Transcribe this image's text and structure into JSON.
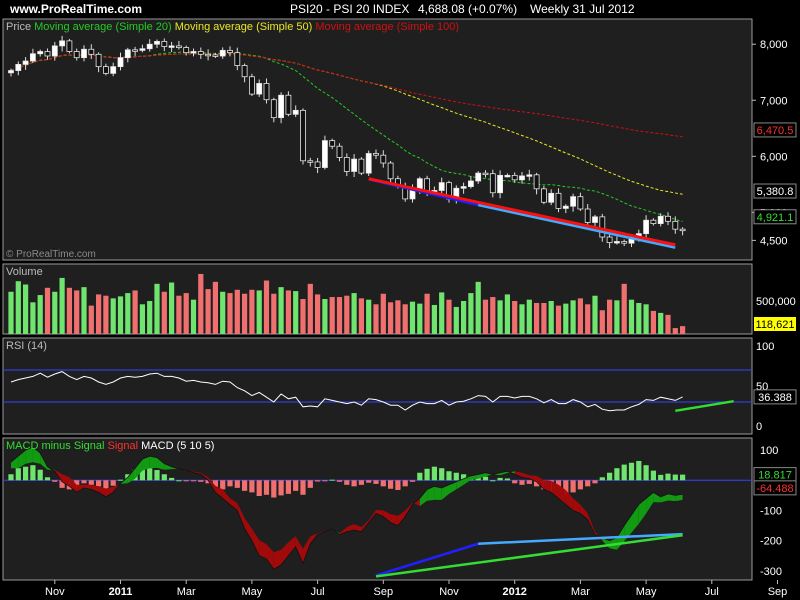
{
  "header": {
    "site": "www.ProRealTime.com",
    "title": "PSI20 - PSI 20 INDEX",
    "quote": "4,688.08 (+0.07%)",
    "period": "Weekly  31 Jul 2012"
  },
  "watermark": "© ProRealTime.com",
  "colors": {
    "background": "#000000",
    "panel": "#1f1f1f",
    "up": "#6fe46f",
    "down": "#f07070",
    "ma20": "#22cc22",
    "ma50": "#e8e820",
    "ma100": "#d01010",
    "rsi": "#ffffff",
    "rsi_bands": "#3344ff",
    "trend_red": "#ff1010",
    "trend_blue": "#2020ff",
    "trend_lightblue": "#44aaff",
    "trend_green": "#33dd33"
  },
  "chart_data": [
    {
      "type": "candlestick",
      "name": "price",
      "legend": [
        {
          "label": "Price",
          "color": "#bbbbbb"
        },
        {
          "label": "Moving average (Simple 20)",
          "color": "#22cc22"
        },
        {
          "label": "Moving average (Simple 50)",
          "color": "#e8e820"
        },
        {
          "label": "Moving average (Simple 100)",
          "color": "#d01010"
        }
      ],
      "ylim": [
        4150,
        8450
      ],
      "yticks": [
        4500,
        5000,
        6000,
        7000,
        8000
      ],
      "ytick_labels": [
        "4,500",
        "5,000",
        "6,000",
        "7,000",
        "8,000"
      ],
      "last_value_labels": [
        {
          "value": 6470.5,
          "text": "6,470.5",
          "color": "#ff3030"
        },
        {
          "value": 5380.8,
          "text": "5,380.8",
          "color": "#ffffff"
        },
        {
          "value": 4921.1,
          "text": "4,921.1",
          "color": "#33dd33"
        }
      ],
      "close": [
        7530,
        7640,
        7700,
        7830,
        7870,
        7790,
        7970,
        8060,
        7870,
        7760,
        7910,
        7820,
        7600,
        7480,
        7600,
        7760,
        7900,
        7890,
        7920,
        8000,
        8050,
        7960,
        7970,
        7940,
        7850,
        7870,
        7820,
        7810,
        7790,
        7890,
        7850,
        7620,
        7420,
        7110,
        7300,
        7010,
        6690,
        7090,
        6750,
        6820,
        5920,
        5900,
        5800,
        6280,
        6180,
        5980,
        5730,
        5950,
        5700,
        6050,
        6020,
        5880,
        5600,
        5460,
        5240,
        5410,
        5600,
        5390,
        5390,
        5530,
        5240,
        5430,
        5460,
        5560,
        5700,
        5690,
        5350,
        5660,
        5660,
        5580,
        5650,
        5670,
        5420,
        5180,
        5340,
        5070,
        5110,
        5280,
        5060,
        4820,
        4920,
        4560,
        4460,
        4480,
        4450,
        4560,
        4620,
        4860,
        4800,
        4930,
        4840,
        4700,
        4688
      ]
    },
    {
      "type": "bar",
      "name": "Volume",
      "legend": [
        {
          "label": "Volume",
          "color": "#bbbbbb"
        }
      ],
      "ytick_labels": [
        "500,000"
      ],
      "last_value_label": "118,621",
      "values": [
        640,
        800,
        750,
        480,
        590,
        700,
        640,
        850,
        700,
        660,
        710,
        430,
        600,
        580,
        540,
        570,
        620,
        660,
        450,
        500,
        760,
        640,
        780,
        580,
        620,
        520,
        910,
        680,
        790,
        640,
        620,
        670,
        610,
        670,
        660,
        810,
        610,
        710,
        660,
        650,
        530,
        760,
        600,
        530,
        560,
        560,
        580,
        620,
        540,
        520,
        450,
        610,
        480,
        510,
        450,
        490,
        460,
        610,
        440,
        630,
        520,
        410,
        500,
        620,
        790,
        520,
        560,
        510,
        600,
        500,
        450,
        520,
        470,
        470,
        500,
        430,
        460,
        510,
        540,
        450,
        580,
        360,
        520,
        510,
        760,
        520,
        470,
        450,
        350,
        320,
        290,
        90,
        119
      ]
    },
    {
      "type": "line",
      "name": "RSI (14)",
      "legend": [
        {
          "label": "RSI (14)",
          "color": "#bbbbbb"
        }
      ],
      "ylim": [
        -10,
        110
      ],
      "yticks": [
        0,
        50,
        100
      ],
      "bands": [
        70,
        30
      ],
      "last_value_label": "36.388",
      "values": [
        55,
        58,
        60,
        62,
        66,
        61,
        65,
        68,
        62,
        58,
        62,
        60,
        55,
        52,
        55,
        60,
        62,
        61,
        62,
        65,
        66,
        62,
        62,
        60,
        56,
        57,
        55,
        54,
        52,
        56,
        55,
        48,
        44,
        38,
        42,
        36,
        30,
        40,
        34,
        36,
        24,
        25,
        24,
        34,
        32,
        30,
        28,
        30,
        26,
        34,
        33,
        30,
        26,
        26,
        20,
        26,
        30,
        28,
        28,
        32,
        26,
        30,
        31,
        34,
        38,
        37,
        30,
        37,
        37,
        35,
        37,
        37,
        34,
        29,
        33,
        28,
        28,
        33,
        30,
        24,
        27,
        21,
        19,
        20,
        20,
        24,
        27,
        33,
        32,
        36,
        34,
        32,
        36.4
      ]
    },
    {
      "type": "bar+line",
      "name": "MACD",
      "legend": [
        {
          "label": "MACD minus Signal",
          "color": "#33dd33"
        },
        {
          "label": "Signal",
          "color": "#ff3030"
        },
        {
          "label": "MACD (5 10 5)",
          "color": "#ffffff"
        }
      ],
      "ylim": [
        -330,
        140
      ],
      "yticks": [
        -300,
        -200,
        -100,
        0,
        100
      ],
      "last_value_labels": [
        {
          "text": "18.817",
          "color": "#33dd33"
        },
        {
          "text": "-64.488",
          "color": "#ff3030"
        }
      ],
      "histogram": [
        20,
        40,
        45,
        50,
        35,
        10,
        -5,
        -25,
        -30,
        -25,
        -10,
        -15,
        -20,
        -28,
        -18,
        2,
        20,
        35,
        38,
        40,
        34,
        20,
        8,
        0,
        -2,
        -3,
        -5,
        -10,
        -22,
        -30,
        -20,
        -25,
        -35,
        -40,
        -52,
        -48,
        -57,
        -50,
        -45,
        -35,
        -48,
        -25,
        -4,
        -2,
        2,
        -5,
        -15,
        -20,
        -15,
        -8,
        -12,
        -20,
        -28,
        -32,
        -20,
        -5,
        25,
        38,
        45,
        40,
        30,
        25,
        20,
        14,
        15,
        12,
        0,
        8,
        6,
        -10,
        -15,
        -12,
        -20,
        -30,
        -38,
        -45,
        -48,
        -40,
        -30,
        -20,
        -10,
        10,
        25,
        40,
        52,
        58,
        64,
        50,
        32,
        18,
        22,
        19,
        18.8
      ],
      "macd": [
        60,
        80,
        100,
        110,
        90,
        45,
        30,
        -5,
        -20,
        -40,
        -25,
        -30,
        -40,
        -55,
        -40,
        -10,
        10,
        40,
        70,
        80,
        75,
        55,
        45,
        38,
        35,
        25,
        20,
        0,
        -40,
        -60,
        -80,
        -100,
        -160,
        -200,
        -250,
        -260,
        -295,
        -280,
        -250,
        -220,
        -275,
        -210,
        -180,
        -170,
        -160,
        -180,
        -170,
        -165,
        -170,
        -140,
        -110,
        -120,
        -140,
        -150,
        -120,
        -80,
        -60,
        -30,
        -20,
        -25,
        -15,
        -5,
        5,
        15,
        20,
        25,
        20,
        25,
        30,
        20,
        10,
        5,
        -5,
        -30,
        -40,
        -60,
        -80,
        -100,
        -110,
        -130,
        -180,
        -190,
        -200,
        -190,
        -150,
        -115,
        -80,
        -60,
        -40,
        -55,
        -45,
        -50,
        -46
      ]
    }
  ],
  "x_axis": {
    "labels": [
      "Nov",
      "2011",
      "Mar",
      "May",
      "Jul",
      "Sep",
      "Nov",
      "2012",
      "Mar",
      "May",
      "Jul",
      "Sep"
    ],
    "bold": [
      false,
      true,
      false,
      false,
      false,
      false,
      false,
      true,
      false,
      false,
      false,
      false
    ],
    "week_index": [
      6,
      15,
      24,
      33,
      42,
      51,
      60,
      69,
      78,
      87,
      96,
      105
    ]
  },
  "trendlines": [
    {
      "pane": 0,
      "color": "#2020ff",
      "points": [
        [
          49,
          5590
        ],
        [
          64,
          5130
        ]
      ]
    },
    {
      "pane": 0,
      "color": "#44aaff",
      "points": [
        [
          64,
          5130
        ],
        [
          91,
          4370
        ]
      ]
    },
    {
      "pane": 0,
      "color": "#ff1010",
      "points": [
        [
          49,
          5600
        ],
        [
          91,
          4420
        ]
      ]
    },
    {
      "pane": 2,
      "color": "#33dd33",
      "points": [
        [
          91,
          19
        ],
        [
          99,
          31
        ]
      ]
    },
    {
      "pane": 3,
      "color": "#2020ff",
      "points": [
        [
          50,
          -315
        ],
        [
          64,
          -210
        ]
      ]
    },
    {
      "pane": 3,
      "color": "#44aaff",
      "points": [
        [
          64,
          -210
        ],
        [
          92,
          -178
        ]
      ]
    },
    {
      "pane": 3,
      "color": "#33dd33",
      "points": [
        [
          50,
          -318
        ],
        [
          92,
          -182
        ]
      ]
    }
  ]
}
